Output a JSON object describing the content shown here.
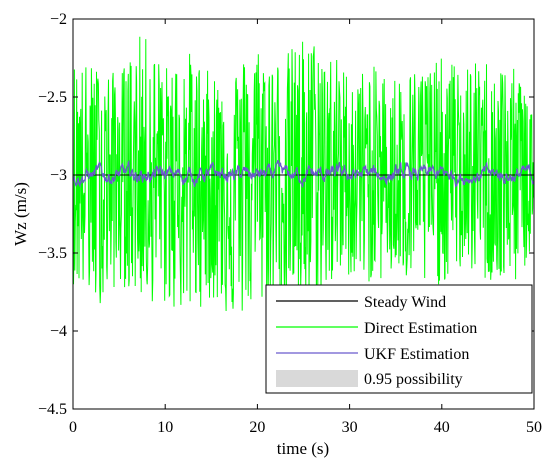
{
  "chart_data": {
    "type": "line",
    "xlabel": "time (s)",
    "ylabel": "Wz (m/s)",
    "xlim": [
      0,
      50
    ],
    "ylim": [
      -4.5,
      -2
    ],
    "xticks": [
      0,
      10,
      20,
      30,
      40,
      50
    ],
    "xtick_labels": [
      "0",
      "10",
      "20",
      "30",
      "40",
      "50"
    ],
    "yticks": [
      -2,
      -2.5,
      -3,
      -3.5,
      -4,
      -4.5
    ],
    "ytick_labels": [
      "−2",
      "−2.5",
      "−3",
      "−3.5",
      "−4",
      "−4.5"
    ],
    "grid": false,
    "legend_position": "bottom-right",
    "series": [
      {
        "name": "Steady Wind",
        "color": "#000000",
        "x": [
          0,
          50
        ],
        "y": [
          -3,
          -3
        ]
      },
      {
        "name": "Direct Estimation",
        "color": "#00ff00",
        "x": [
          0,
          2.5,
          5,
          7.5,
          10,
          12.5,
          15,
          17.5,
          20,
          22.5,
          25,
          27.5,
          30,
          32.5,
          35,
          37.5,
          40,
          42.5,
          45,
          47.5,
          50
        ],
        "y_center": -3.0,
        "y_upper_envelope": [
          -2.25,
          -2.3,
          -2.35,
          -2.08,
          -2.3,
          -2.2,
          -2.35,
          -2.3,
          -2.15,
          -2.25,
          -2.1,
          -2.15,
          -2.35,
          -2.3,
          -2.35,
          -2.3,
          -2.25,
          -2.3,
          -2.25,
          -2.3,
          -2.45
        ],
        "y_lower_envelope": [
          -3.7,
          -3.85,
          -3.7,
          -3.8,
          -3.85,
          -3.9,
          -3.8,
          -3.95,
          -3.85,
          -3.85,
          -3.9,
          -3.75,
          -3.65,
          -3.7,
          -3.65,
          -3.75,
          -3.7,
          -3.6,
          -3.7,
          -3.75,
          -3.5
        ]
      },
      {
        "name": "UKF Estimation",
        "color": "#6a5acd",
        "x": [
          0,
          50
        ],
        "y_center": -3.0,
        "y_range": [
          -3.12,
          -2.85
        ]
      },
      {
        "name": "0.95 possibility",
        "color": "#d9d9d9",
        "type": "area"
      }
    ]
  }
}
